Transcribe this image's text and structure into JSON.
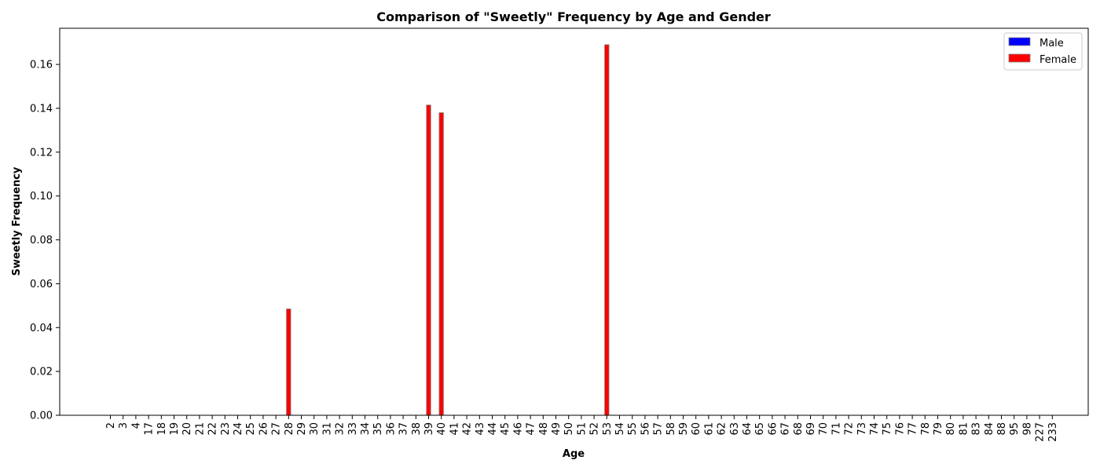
{
  "chart_data": {
    "type": "bar",
    "title": "Comparison of \"Sweetly\" Frequency by Age and Gender",
    "xlabel": "Age",
    "ylabel": "Sweetly Frequency",
    "ylim": [
      0,
      0.1765
    ],
    "yticks": [
      "0.00",
      "0.02",
      "0.04",
      "0.06",
      "0.08",
      "0.10",
      "0.12",
      "0.14",
      "0.16"
    ],
    "categories": [
      "2",
      "3",
      "4",
      "17",
      "18",
      "19",
      "20",
      "21",
      "22",
      "23",
      "24",
      "25",
      "26",
      "27",
      "28",
      "29",
      "30",
      "31",
      "32",
      "33",
      "34",
      "35",
      "36",
      "37",
      "38",
      "39",
      "40",
      "41",
      "42",
      "43",
      "44",
      "45",
      "46",
      "47",
      "48",
      "49",
      "50",
      "51",
      "52",
      "53",
      "54",
      "55",
      "56",
      "57",
      "58",
      "59",
      "60",
      "61",
      "62",
      "63",
      "64",
      "65",
      "66",
      "67",
      "68",
      "69",
      "70",
      "71",
      "72",
      "73",
      "74",
      "75",
      "76",
      "77",
      "78",
      "79",
      "80",
      "81",
      "83",
      "84",
      "88",
      "95",
      "98",
      "227",
      "233"
    ],
    "series": [
      {
        "name": "Male",
        "color": "#0000ff",
        "values": [
          0,
          0,
          0,
          0,
          0,
          0,
          0,
          0,
          0,
          0,
          0,
          0,
          0,
          0,
          0,
          0,
          0,
          0,
          0,
          0,
          0,
          0,
          0,
          0,
          0,
          0,
          0,
          0,
          0,
          0,
          0,
          0,
          0,
          0,
          0,
          0,
          0,
          0,
          0,
          0,
          0,
          0,
          0,
          0,
          0,
          0,
          0,
          0,
          0,
          0,
          0,
          0,
          0,
          0,
          0,
          0,
          0,
          0,
          0,
          0,
          0,
          0,
          0,
          0,
          0,
          0,
          0,
          0,
          0,
          0,
          0,
          0,
          0,
          0,
          0
        ]
      },
      {
        "name": "Female",
        "color": "#ff0000",
        "values": [
          0,
          0,
          0,
          0,
          0,
          0,
          0,
          0,
          0,
          0,
          0,
          0,
          0,
          0,
          0.0485,
          0,
          0,
          0,
          0,
          0,
          0,
          0,
          0,
          0,
          0,
          0.1415,
          0.138,
          0,
          0,
          0,
          0,
          0,
          0,
          0,
          0,
          0,
          0,
          0,
          0,
          0.169,
          0,
          0,
          0,
          0,
          0,
          0,
          0,
          0,
          0,
          0,
          0,
          0,
          0,
          0,
          0,
          0,
          0,
          0,
          0,
          0,
          0,
          0,
          0,
          0,
          0,
          0,
          0,
          0,
          0,
          0,
          0,
          0,
          0,
          0,
          0
        ]
      }
    ],
    "legend_position": "top-right",
    "grid": false
  }
}
